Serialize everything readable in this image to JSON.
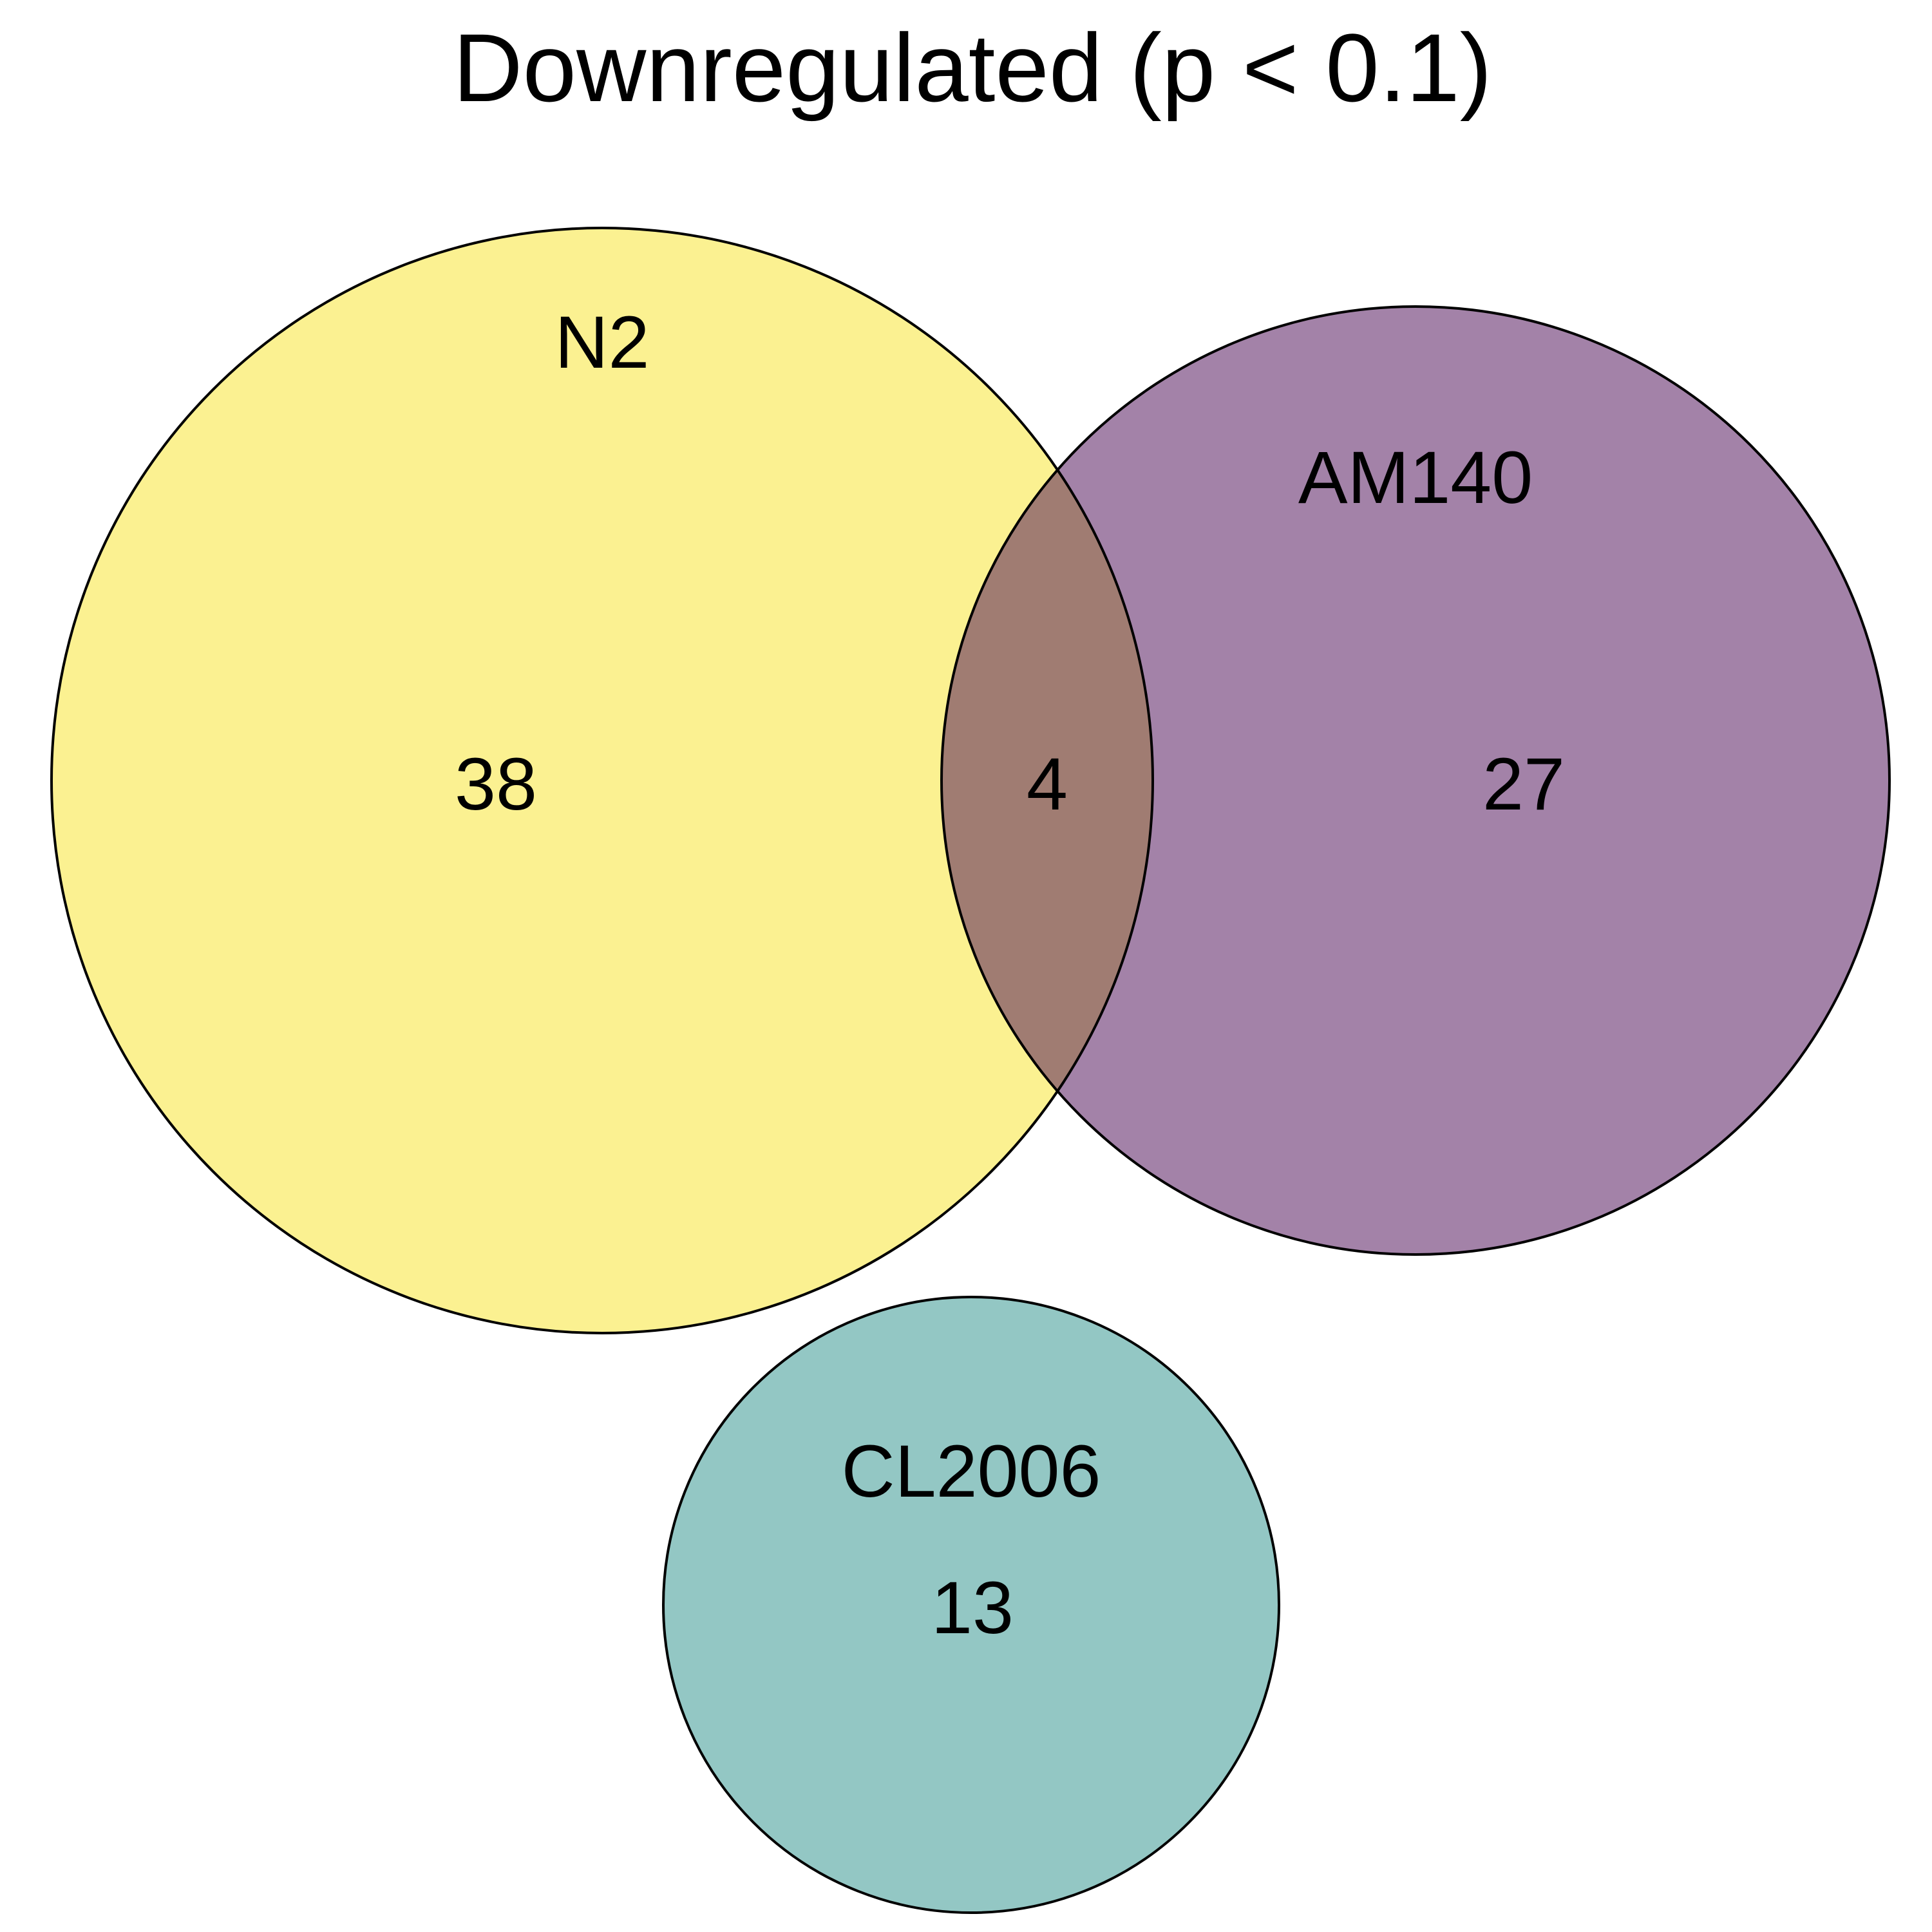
{
  "title": "Downregulated (p < 0.1)",
  "colors": {
    "N2": "#fbf191",
    "AM140": "#a382a8",
    "CL2006": "#93c7c4",
    "N2_AM140_overlap": "#a07c72",
    "stroke": "#000000",
    "background": "#ffffff"
  },
  "sets": [
    {
      "id": "N2",
      "label": "N2"
    },
    {
      "id": "AM140",
      "label": "AM140"
    },
    {
      "id": "CL2006",
      "label": "CL2006"
    }
  ],
  "regions": [
    {
      "id": "n2_only",
      "sets": [
        "N2"
      ],
      "count": "38"
    },
    {
      "id": "n2_am140",
      "sets": [
        "N2",
        "AM140"
      ],
      "count": "4"
    },
    {
      "id": "am140_only",
      "sets": [
        "AM140"
      ],
      "count": "27"
    },
    {
      "id": "cl2006_only",
      "sets": [
        "CL2006"
      ],
      "count": "13"
    }
  ]
}
